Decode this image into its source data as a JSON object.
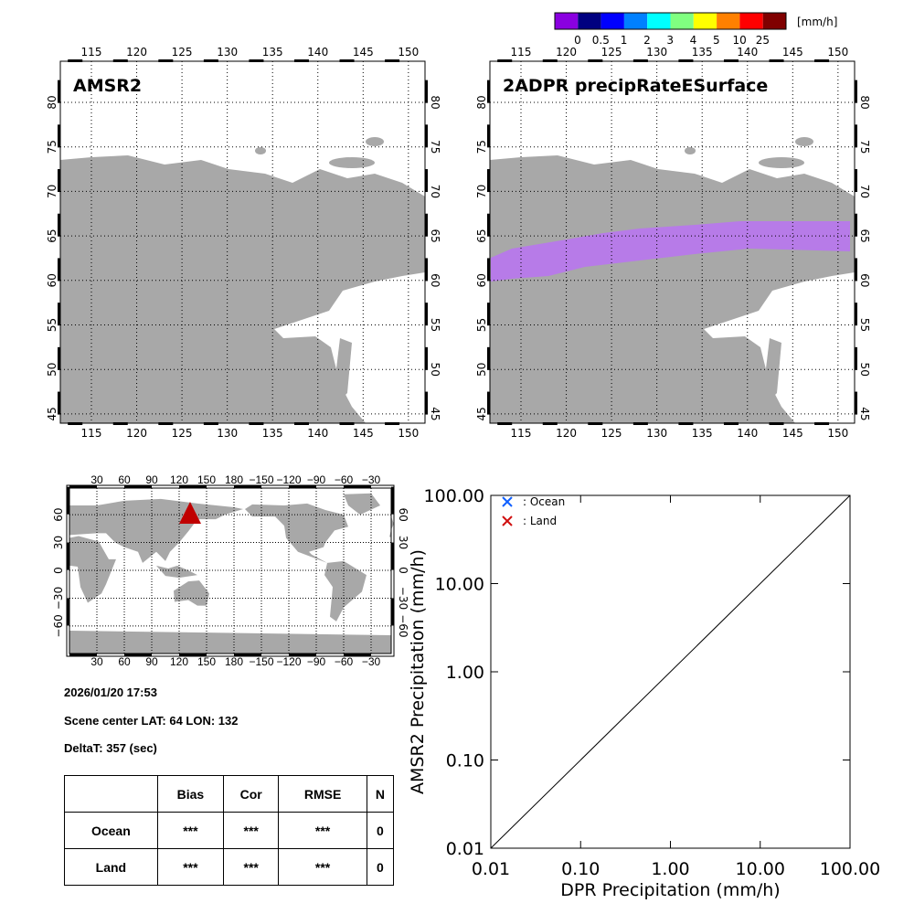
{
  "colorbar": {
    "colors": [
      "#8a00e0",
      "#000080",
      "#0000ff",
      "#0080ff",
      "#00ffff",
      "#80ff80",
      "#ffff00",
      "#ff8000",
      "#ff0000",
      "#800000"
    ],
    "labels": [
      "0",
      "0.5",
      "1",
      "2",
      "3",
      "4",
      "5",
      "10",
      "25"
    ],
    "unit": "[mm/h]"
  },
  "map_left": {
    "title": "AMSR2"
  },
  "map_right": {
    "title": "2ADPR precipRateESurface",
    "swath_color": "#b77be8"
  },
  "regional_axes": {
    "lon_ticks": [
      "115",
      "120",
      "125",
      "130",
      "135",
      "140",
      "145",
      "150"
    ],
    "lat_ticks": [
      "45",
      "50",
      "55",
      "60",
      "65",
      "70",
      "75",
      "80"
    ]
  },
  "world_map": {
    "lon_ticks": [
      "30",
      "60",
      "90",
      "120",
      "150",
      "180",
      "−150",
      "−120",
      "−90",
      "−60",
      "−30"
    ],
    "lat_ticks": [
      "60",
      "30",
      "0",
      "−30",
      "−60"
    ],
    "marker": {
      "lat": 64,
      "lon": 132,
      "color": "#c00000"
    }
  },
  "info": {
    "datetime": "2026/01/20 17:53",
    "scene_center": "Scene center LAT: 64   LON: 132",
    "deltat": "DeltaT:  357 (sec)"
  },
  "stats_table": {
    "headers": [
      "",
      "Bias",
      "Cor",
      "RMSE",
      "N"
    ],
    "rows": [
      [
        "Ocean",
        "***",
        "***",
        "***",
        "0"
      ],
      [
        "Land",
        "***",
        "***",
        "***",
        "0"
      ]
    ]
  },
  "chart_data": {
    "type": "scatter",
    "xlabel": "DPR Precipitation (mm/h)",
    "ylabel": "AMSR2 Precipitation (mm/h)",
    "xscale": "log",
    "yscale": "log",
    "xlim": [
      0.01,
      100
    ],
    "ylim": [
      0.01,
      100
    ],
    "ticks": [
      "0.01",
      "0.10",
      "1.00",
      "10.00",
      "100.00"
    ],
    "series": [
      {
        "name": ": Ocean",
        "color": "#1060ff",
        "marker": "x",
        "points": []
      },
      {
        "name": ": Land",
        "color": "#d01010",
        "marker": "x",
        "points": []
      }
    ],
    "reference_line": "1:1",
    "legend": "top-left"
  }
}
